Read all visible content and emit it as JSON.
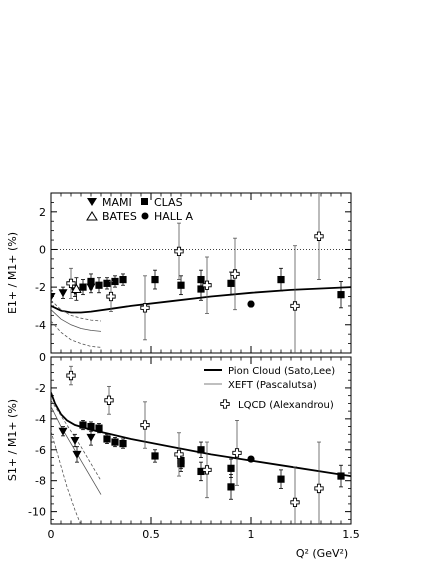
{
  "chart_data": [
    {
      "type": "scatter",
      "panel": "top",
      "ylabel": "E1+ / M1+ (%)",
      "ylim": [
        -5.5,
        3
      ],
      "xlim": [
        0,
        1.5
      ],
      "y_ticks": [
        "-4",
        "-2",
        "0",
        "2"
      ],
      "legend": [
        {
          "name": "MAMI",
          "marker": "triangle-down-filled"
        },
        {
          "name": "CLAS",
          "marker": "square-filled"
        },
        {
          "name": "BATES",
          "marker": "triangle-up-open"
        },
        {
          "name": "HALL A",
          "marker": "circle-filled"
        }
      ],
      "series": [
        {
          "name": "MAMI",
          "marker": "triangle-down-filled",
          "points": [
            [
              0.0,
              -2.5,
              0.3
            ],
            [
              0.06,
              -2.3,
              0.3
            ],
            [
              0.12,
              -2.2,
              0.3
            ],
            [
              0.2,
              -2.0,
              0.3
            ]
          ]
        },
        {
          "name": "BATES",
          "marker": "triangle-up-open",
          "points": [
            [
              0.127,
              -2.1,
              0.6
            ]
          ]
        },
        {
          "name": "CLAS",
          "marker": "square-filled",
          "points": [
            [
              0.16,
              -2.0,
              0.4
            ],
            [
              0.2,
              -1.7,
              0.4
            ],
            [
              0.24,
              -1.9,
              0.4
            ],
            [
              0.28,
              -1.8,
              0.3
            ],
            [
              0.32,
              -1.7,
              0.3
            ],
            [
              0.36,
              -1.6,
              0.3
            ],
            [
              0.52,
              -1.6,
              0.5
            ],
            [
              0.65,
              -1.9,
              0.5
            ],
            [
              0.75,
              -1.6,
              0.5
            ],
            [
              0.75,
              -2.1,
              0.6
            ],
            [
              0.9,
              -1.8,
              0.6
            ],
            [
              1.15,
              -1.6,
              0.6
            ],
            [
              1.45,
              -2.4,
              0.7
            ]
          ]
        },
        {
          "name": "HALL A",
          "marker": "circle-filled",
          "points": [
            [
              1.0,
              -2.9,
              0.15
            ]
          ]
        },
        {
          "name": "LQCD",
          "marker": "cross-open",
          "points": [
            [
              0.1,
              -1.8,
              0.8
            ],
            [
              0.3,
              -2.5,
              0.8
            ],
            [
              0.47,
              -3.1,
              1.7
            ],
            [
              0.64,
              -0.1,
              1.5
            ],
            [
              0.78,
              -1.9,
              1.5
            ],
            [
              0.92,
              -1.3,
              1.9
            ],
            [
              1.22,
              -3.0,
              3.2
            ],
            [
              1.34,
              0.7,
              2.3
            ]
          ]
        }
      ],
      "curves": [
        {
          "name": "Pion Cloud (Sato,Lee)",
          "style": "solid-thick",
          "x": [
            0.0,
            0.05,
            0.1,
            0.15,
            0.2,
            0.3,
            0.4,
            0.6,
            0.8,
            1.0,
            1.2,
            1.5
          ],
          "y": [
            -3.0,
            -3.25,
            -3.35,
            -3.35,
            -3.3,
            -3.15,
            -3.0,
            -2.75,
            -2.5,
            -2.3,
            -2.15,
            -2.0
          ]
        },
        {
          "name": "XEFT (Pascalutsa)",
          "style": "solid-thin",
          "x": [
            0.0,
            0.05,
            0.1,
            0.15,
            0.2,
            0.25
          ],
          "y": [
            -3.2,
            -3.7,
            -4.0,
            -4.2,
            -4.3,
            -4.35
          ]
        },
        {
          "name": "XEFT band",
          "style": "dashed",
          "x": [
            0.0,
            0.05,
            0.1,
            0.15,
            0.2,
            0.25
          ],
          "y": [
            -2.7,
            -3.2,
            -3.5,
            -3.65,
            -3.75,
            -3.8
          ]
        },
        {
          "name": "XEFT band",
          "style": "dashed",
          "x": [
            0.0,
            0.05,
            0.1,
            0.15,
            0.2,
            0.25
          ],
          "y": [
            -3.8,
            -4.4,
            -4.8,
            -5.0,
            -5.15,
            -5.2
          ]
        }
      ],
      "reference_line": {
        "y": 0,
        "style": "dotted"
      }
    },
    {
      "type": "scatter",
      "panel": "bottom",
      "ylabel": "S1+ / M1+ (%)",
      "xlabel": "Q² (GeV²)",
      "ylim": [
        -10.8,
        0
      ],
      "xlim": [
        0,
        1.5
      ],
      "y_ticks": [
        "-10",
        "-8",
        "-6",
        "-4",
        "-2",
        "0"
      ],
      "x_ticks": [
        "0",
        "0.5",
        "1",
        "1.5"
      ],
      "legend": [
        {
          "name": "Pion Cloud (Sato,Lee)",
          "style": "solid-thick"
        },
        {
          "name": "XEFT (Pascalutsa)",
          "style": "solid-thin"
        },
        {
          "name": "LQCD (Alexandrou)",
          "marker": "cross-open"
        }
      ],
      "series": [
        {
          "name": "MAMI",
          "marker": "triangle-down-filled",
          "points": [
            [
              0.06,
              -4.8,
              0.3
            ],
            [
              0.12,
              -5.4,
              0.4
            ],
            [
              0.13,
              -6.3,
              0.5
            ],
            [
              0.2,
              -5.2,
              0.5
            ]
          ]
        },
        {
          "name": "CLAS",
          "marker": "square-filled",
          "points": [
            [
              0.16,
              -4.4,
              0.3
            ],
            [
              0.2,
              -4.5,
              0.3
            ],
            [
              0.24,
              -4.6,
              0.3
            ],
            [
              0.28,
              -5.3,
              0.3
            ],
            [
              0.32,
              -5.5,
              0.3
            ],
            [
              0.36,
              -5.6,
              0.3
            ],
            [
              0.52,
              -6.4,
              0.4
            ],
            [
              0.65,
              -6.7,
              0.5
            ],
            [
              0.65,
              -6.9,
              0.5
            ],
            [
              0.75,
              -6.0,
              0.5
            ],
            [
              0.75,
              -7.4,
              0.6
            ],
            [
              0.9,
              -7.2,
              0.6
            ],
            [
              0.9,
              -8.4,
              0.8
            ],
            [
              1.15,
              -7.9,
              0.6
            ],
            [
              1.45,
              -7.7,
              0.7
            ]
          ]
        },
        {
          "name": "HALL A",
          "marker": "circle-filled",
          "points": [
            [
              1.0,
              -6.6,
              0.15
            ]
          ]
        },
        {
          "name": "LQCD",
          "marker": "cross-open",
          "points": [
            [
              0.1,
              -1.2,
              0.6
            ],
            [
              0.29,
              -2.8,
              0.9
            ],
            [
              0.47,
              -4.4,
              1.5
            ],
            [
              0.64,
              -6.3,
              1.4
            ],
            [
              0.78,
              -7.3,
              1.8
            ],
            [
              0.93,
              -6.2,
              2.1
            ],
            [
              1.22,
              -9.4,
              2.3
            ],
            [
              1.34,
              -8.5,
              3.0
            ]
          ]
        }
      ],
      "curves": [
        {
          "name": "Pion Cloud (Sato,Lee)",
          "style": "solid-thick",
          "x": [
            0.0,
            0.02,
            0.05,
            0.08,
            0.12,
            0.16,
            0.2,
            0.3,
            0.4,
            0.6,
            0.8,
            1.0,
            1.2,
            1.5
          ],
          "y": [
            -2.3,
            -3.0,
            -3.7,
            -4.1,
            -4.4,
            -4.55,
            -4.7,
            -5.0,
            -5.3,
            -5.8,
            -6.3,
            -6.7,
            -7.1,
            -7.7
          ]
        },
        {
          "name": "XEFT (Pascalutsa)",
          "style": "solid-thin",
          "x": [
            0.0,
            0.05,
            0.1,
            0.15,
            0.2,
            0.25
          ],
          "y": [
            -3.2,
            -4.5,
            -5.6,
            -6.7,
            -7.8,
            -8.9
          ]
        },
        {
          "name": "XEFT band",
          "style": "dashed",
          "x": [
            0.0,
            0.05,
            0.1,
            0.15,
            0.2,
            0.25
          ],
          "y": [
            -2.8,
            -3.8,
            -4.8,
            -5.8,
            -6.9,
            -8.0
          ]
        },
        {
          "name": "XEFT band",
          "style": "dashed",
          "x": [
            0.0,
            0.04,
            0.08,
            0.12,
            0.16
          ],
          "y": [
            -4.8,
            -6.6,
            -8.4,
            -9.9,
            -11.2
          ]
        }
      ]
    }
  ]
}
